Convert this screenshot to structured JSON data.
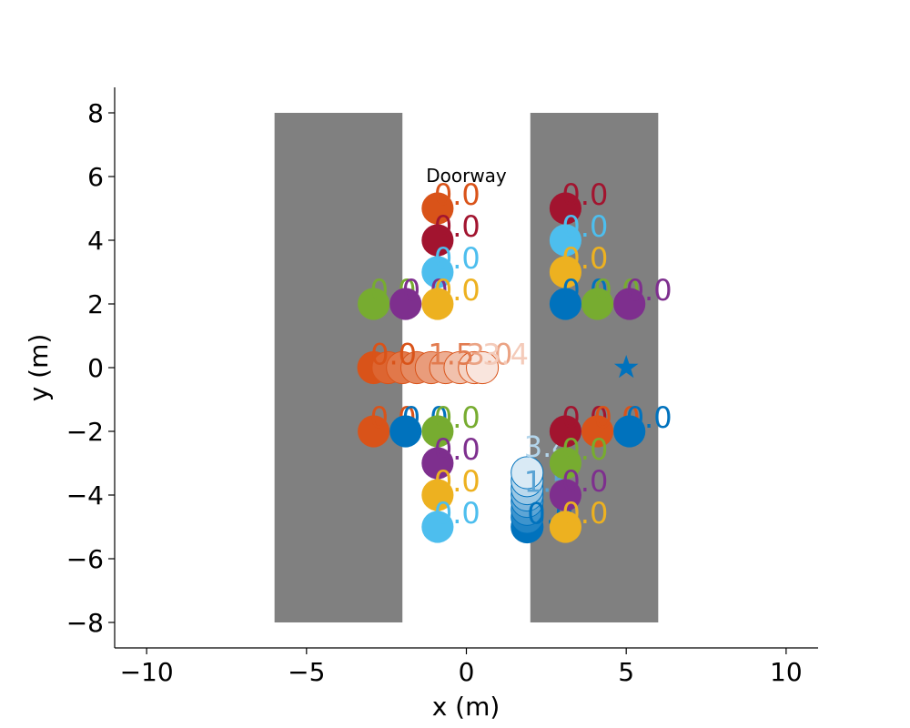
{
  "chart_data": {
    "type": "scatter",
    "title": "",
    "xlabel": "x (m)",
    "ylabel": "y (m)",
    "xlim": [
      -11,
      11
    ],
    "ylim": [
      -8.8,
      8.8
    ],
    "xticks": [
      -10,
      -5,
      0,
      5,
      10
    ],
    "yticks": [
      -8,
      -6,
      -4,
      -2,
      0,
      2,
      4,
      6,
      8
    ],
    "xtick_labels": [
      "−10",
      "−5",
      "0",
      "5",
      "10"
    ],
    "ytick_labels": [
      "−8",
      "−6",
      "−4",
      "−2",
      "0",
      "2",
      "4",
      "6",
      "8"
    ],
    "grid": false,
    "walls": [
      {
        "x": [
          -6,
          -2
        ],
        "y": [
          -8,
          8
        ],
        "color": "#808080"
      },
      {
        "x": [
          2,
          6
        ],
        "y": [
          -8,
          8
        ],
        "color": "#808080"
      }
    ],
    "annotations": [
      {
        "text": "Doorway",
        "x": 0,
        "y": 6.0
      }
    ],
    "goal": {
      "x": 5,
      "y": 0,
      "marker": "star",
      "color": "#0072BD"
    },
    "agents": [
      {
        "x": -0.9,
        "y": 5,
        "color": "#D95319",
        "label": "0.0"
      },
      {
        "x": -0.9,
        "y": 4,
        "color": "#A2142F",
        "label": "0.0"
      },
      {
        "x": -0.9,
        "y": 3,
        "color": "#4DBEEE",
        "label": "0.0"
      },
      {
        "x": -2.9,
        "y": 2,
        "color": "#77AC30",
        "label": "0.0"
      },
      {
        "x": -1.9,
        "y": 2,
        "color": "#7E2F8E",
        "label": "0.0"
      },
      {
        "x": -0.9,
        "y": 2,
        "color": "#EDB120",
        "label": "0.0"
      },
      {
        "x": 3.1,
        "y": 5,
        "color": "#A2142F",
        "label": "0.0"
      },
      {
        "x": 3.1,
        "y": 4,
        "color": "#4DBEEE",
        "label": "0.0"
      },
      {
        "x": 3.1,
        "y": 3,
        "color": "#EDB120",
        "label": "0.0"
      },
      {
        "x": 3.1,
        "y": 2,
        "color": "#0072BD",
        "label": "0.0"
      },
      {
        "x": 4.1,
        "y": 2,
        "color": "#77AC30",
        "label": "0.0"
      },
      {
        "x": 5.1,
        "y": 2,
        "color": "#7E2F8E",
        "label": "0.0"
      },
      {
        "x": -2.9,
        "y": -2,
        "color": "#D95319",
        "label": "0.0"
      },
      {
        "x": -1.9,
        "y": -2,
        "color": "#0072BD",
        "label": "0.0"
      },
      {
        "x": -0.9,
        "y": -2,
        "color": "#77AC30",
        "label": "0.0"
      },
      {
        "x": -0.9,
        "y": -3,
        "color": "#7E2F8E",
        "label": "0.0"
      },
      {
        "x": -0.9,
        "y": -4,
        "color": "#EDB120",
        "label": "0.0"
      },
      {
        "x": -0.9,
        "y": -5,
        "color": "#4DBEEE",
        "label": "0.0"
      },
      {
        "x": 3.1,
        "y": -2,
        "color": "#A2142F",
        "label": "0.0"
      },
      {
        "x": 4.1,
        "y": -2,
        "color": "#D95319",
        "label": "0.0"
      },
      {
        "x": 5.1,
        "y": -2,
        "color": "#0072BD",
        "label": "0.0"
      },
      {
        "x": 3.1,
        "y": -3,
        "color": "#77AC30",
        "label": "0.0"
      },
      {
        "x": 3.1,
        "y": -4,
        "color": "#7E2F8E",
        "label": "0.0"
      },
      {
        "x": 3.1,
        "y": -5,
        "color": "#EDB120",
        "label": "0.0"
      }
    ],
    "trajectories": [
      {
        "name": "",
        "color": "#D95319",
        "points": [
          {
            "x": -2.9,
            "y": 0.0,
            "t": 0.0
          },
          {
            "x": -2.45,
            "y": 0.0,
            "t": 0.4
          },
          {
            "x": -2.0,
            "y": 0.0,
            "t": 0.8
          },
          {
            "x": -1.55,
            "y": 0.0,
            "t": 1.2
          },
          {
            "x": -1.1,
            "y": 0.0,
            "t": 1.5
          },
          {
            "x": -0.65,
            "y": 0.0,
            "t": 2.0
          },
          {
            "x": -0.2,
            "y": 0.0,
            "t": 2.5
          },
          {
            "x": 0.25,
            "y": 0.0,
            "t": 3.0
          },
          {
            "x": 0.5,
            "y": 0.0,
            "t": 3.4
          }
        ],
        "time_labels": [
          {
            "text": "0.0",
            "x": -3.0,
            "y": 0.1
          },
          {
            "text": "1.5",
            "x": -1.2,
            "y": 0.1
          },
          {
            "text": "3.0",
            "x": 0.0,
            "y": 0.1
          },
          {
            "text": "3.4",
            "x": 0.5,
            "y": 0.1
          }
        ]
      },
      {
        "name": "",
        "color": "#0072BD",
        "points": [
          {
            "x": 1.9,
            "y": -5.0,
            "t": 0.0
          },
          {
            "x": 1.9,
            "y": -4.7,
            "t": 0.4
          },
          {
            "x": 1.9,
            "y": -4.45,
            "t": 0.8
          },
          {
            "x": 1.9,
            "y": -4.2,
            "t": 1.2
          },
          {
            "x": 1.9,
            "y": -4.0,
            "t": 1.5
          },
          {
            "x": 1.9,
            "y": -3.8,
            "t": 2.0
          },
          {
            "x": 1.9,
            "y": -3.55,
            "t": 2.5
          },
          {
            "x": 1.9,
            "y": -3.3,
            "t": 3.4
          }
        ],
        "time_labels": [
          {
            "text": "0.0",
            "x": 1.9,
            "y": -4.9
          },
          {
            "text": "1.5",
            "x": 1.8,
            "y": -3.9
          },
          {
            "text": "3.4",
            "x": 1.8,
            "y": -2.8
          }
        ]
      }
    ]
  }
}
